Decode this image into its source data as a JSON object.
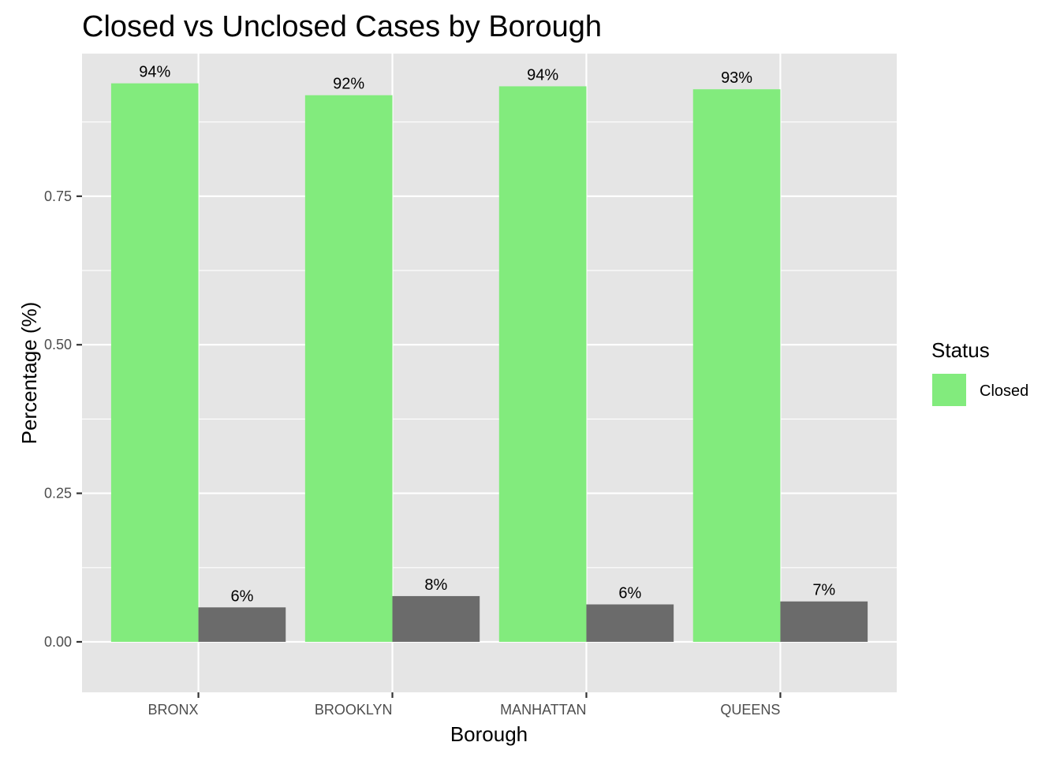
{
  "chart_data": {
    "type": "bar",
    "title": "Closed vs Unclosed Cases by Borough",
    "xlabel": "Borough",
    "ylabel": "Percentage (%)",
    "categories": [
      "BRONX",
      "BROOKLYN",
      "MANHATTAN",
      "QUEENS"
    ],
    "series": [
      {
        "name": "Closed",
        "color": "#82EB7D",
        "values": [
          0.94,
          0.92,
          0.935,
          0.93
        ],
        "labels": [
          "94%",
          "92%",
          "94%",
          "93%"
        ]
      },
      {
        "color": "#6B6B6B",
        "values": [
          0.058,
          0.077,
          0.063,
          0.068
        ],
        "labels": [
          "6%",
          "8%",
          "6%",
          "7%"
        ]
      }
    ],
    "ylim": [
      -0.085,
      0.99
    ],
    "y_ticks": [
      0.0,
      0.25,
      0.5,
      0.75
    ],
    "y_tick_labels": [
      "0.00",
      "0.25",
      "0.50",
      "0.75"
    ],
    "grid": true,
    "legend": {
      "title": "Status",
      "placement": "right",
      "entries": [
        "Closed"
      ]
    },
    "panel_background": "#E5E5E5"
  }
}
